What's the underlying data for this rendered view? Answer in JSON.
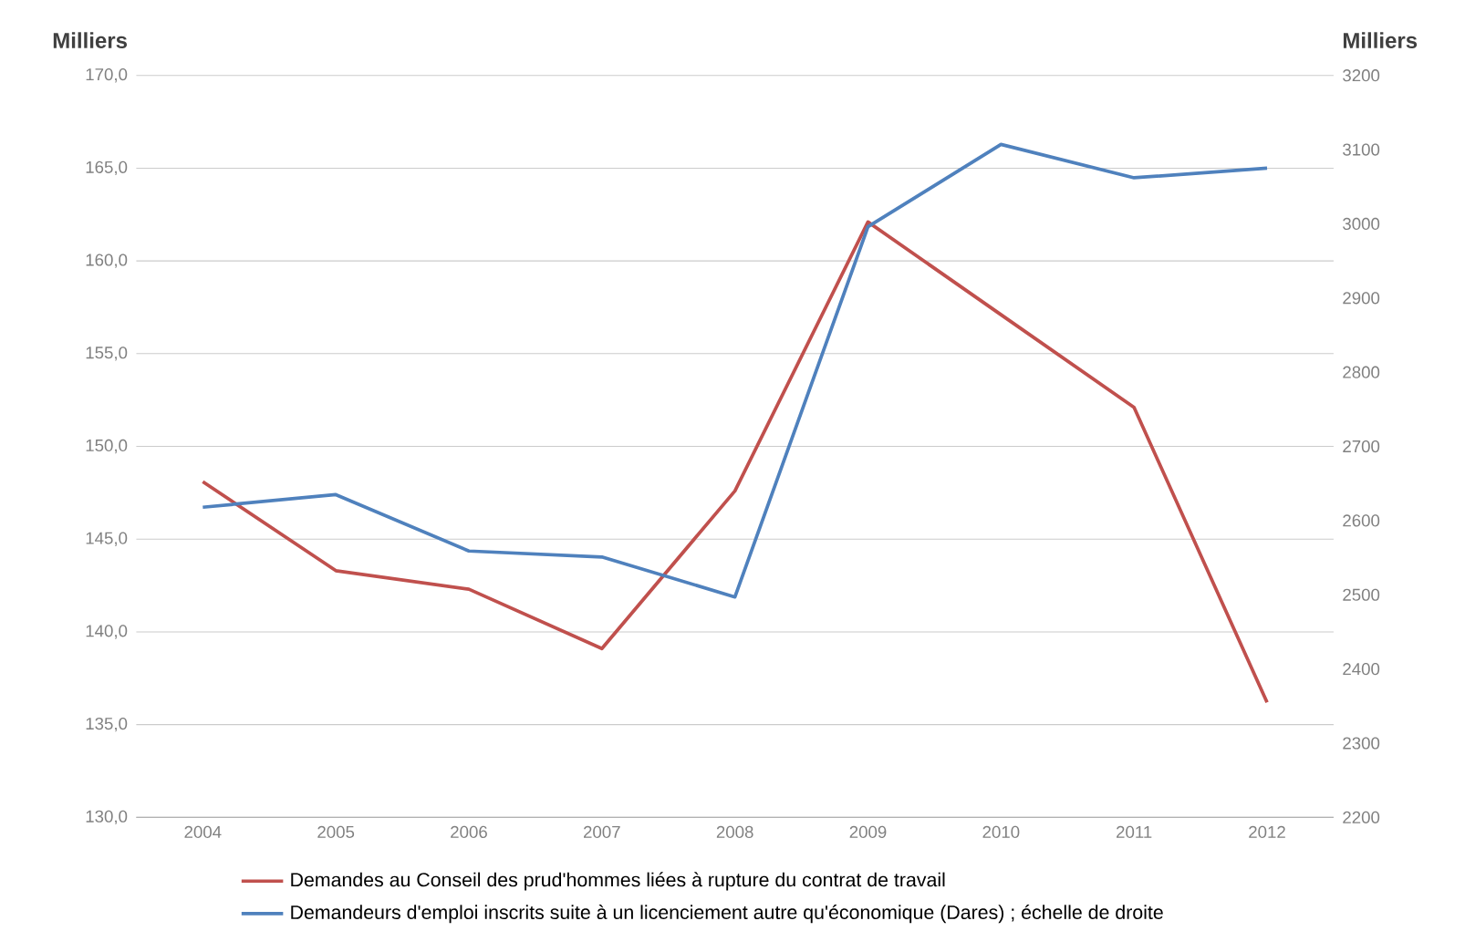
{
  "chart_data": {
    "type": "line",
    "ylabel": "Milliers",
    "y2label": "Milliers",
    "categories": [
      "2004",
      "2005",
      "2006",
      "2007",
      "2008",
      "2009",
      "2010",
      "2011",
      "2012"
    ],
    "series": [
      {
        "name": "Demandes au Conseil des prud'hommes liées à rupture du contrat de travail",
        "color": "#c0504d",
        "values": [
          148.1,
          143.3,
          142.3,
          139.1,
          147.6,
          162.1,
          157.1,
          152.1,
          136.2
        ]
      },
      {
        "name": "Demandeurs d'emploi inscrits suite à un licenciement autre qu'économique (Dares) ; échelle de droite",
        "color": "#4f81bd",
        "axis": "y2",
        "values": [
          2618,
          2635,
          2559,
          2551,
          2497,
          2996,
          3107,
          3062,
          3075
        ]
      }
    ],
    "ylim": [
      130,
      170
    ],
    "yticks": [
      {
        "value": 130,
        "label": "130,0"
      },
      {
        "value": 135,
        "label": "135,0"
      },
      {
        "value": 140,
        "label": "140,0"
      },
      {
        "value": 145,
        "label": "145,0"
      },
      {
        "value": 150,
        "label": "150,0"
      },
      {
        "value": 155,
        "label": "155,0"
      },
      {
        "value": 160,
        "label": "160,0"
      },
      {
        "value": 165,
        "label": "165,0"
      },
      {
        "value": 170,
        "label": "170,0"
      }
    ],
    "y2lim": [
      2200,
      3200
    ],
    "y2ticks": [
      2200,
      2300,
      2400,
      2500,
      2600,
      2700,
      2800,
      2900,
      3000,
      3100,
      3200
    ],
    "grid": "y",
    "legend": "bottom",
    "marker": "none",
    "line_style": "solid"
  }
}
